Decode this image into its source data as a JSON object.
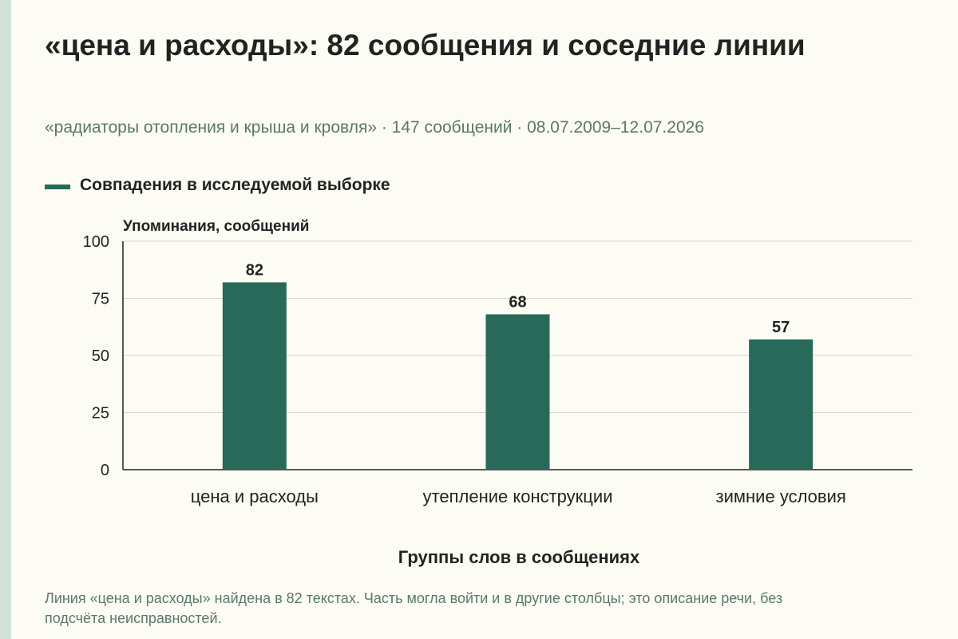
{
  "header": {
    "title": "«цена и расходы»: 82 сообщения и соседние линии",
    "subtitle": "«радиаторы отопления и крыша и кровля» · 147 сообщений · 08.07.2009–12.07.2026"
  },
  "legend": {
    "label": "Совпадения в исследуемой выборке"
  },
  "footnote": "Линия «цена и расходы» найдена в 82 текстах. Часть могла войти и в другие столбцы; это описание речи, без подсчёта неисправностей.",
  "colors": {
    "bar": "#28695a",
    "accent_stripe": "#cfe1d9",
    "muted_text": "#5b786d",
    "background": "#fcfbf4"
  },
  "chart_data": {
    "type": "bar",
    "categories": [
      "цена и расходы",
      "утепление конструкции",
      "зимние условия"
    ],
    "series": [
      {
        "name": "Совпадения в исследуемой выборке",
        "values": [
          82,
          68,
          57
        ]
      }
    ],
    "xlabel": "Группы слов в сообщениях",
    "ylabel": "Упоминания, сообщений",
    "ylim": [
      0,
      100
    ],
    "yticks": [
      0,
      25,
      50,
      75,
      100
    ],
    "grid": true,
    "data_labels": true,
    "legend_position": "top-left"
  }
}
